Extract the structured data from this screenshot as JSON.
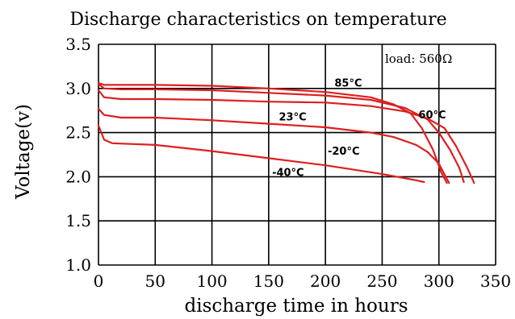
{
  "chart_data": {
    "type": "line",
    "title": "Discharge characteristics on temperature",
    "xlabel": "discharge time in hours",
    "ylabel": "Voltage(v)",
    "xlim": [
      0,
      350
    ],
    "ylim": [
      1.0,
      3.5
    ],
    "x_ticks": [
      "0",
      "50",
      "100",
      "150",
      "200",
      "250",
      "300",
      "350"
    ],
    "y_ticks": [
      "1.0",
      "1.5",
      "2.0",
      "2.5",
      "3.0",
      "3.5"
    ],
    "grid": true,
    "annotation": "load: 560Ω",
    "line_color": "#dd1f1f",
    "series": [
      {
        "name": "85°C",
        "points": [
          [
            0,
            3.06
          ],
          [
            5,
            3.04
          ],
          [
            20,
            3.04
          ],
          [
            50,
            3.04
          ],
          [
            100,
            3.03
          ],
          [
            150,
            3.0
          ],
          [
            200,
            2.96
          ],
          [
            240,
            2.9
          ],
          [
            260,
            2.82
          ],
          [
            275,
            2.72
          ],
          [
            285,
            2.55
          ],
          [
            295,
            2.3
          ],
          [
            302,
            2.05
          ],
          [
            307,
            1.93
          ]
        ]
      },
      {
        "name": "60°C",
        "points": [
          [
            0,
            3.05
          ],
          [
            5,
            3.0
          ],
          [
            20,
            2.99
          ],
          [
            50,
            2.99
          ],
          [
            100,
            2.98
          ],
          [
            150,
            2.95
          ],
          [
            200,
            2.92
          ],
          [
            240,
            2.87
          ],
          [
            270,
            2.78
          ],
          [
            290,
            2.65
          ],
          [
            300,
            2.5
          ],
          [
            310,
            2.3
          ],
          [
            318,
            2.1
          ],
          [
            322,
            1.94
          ]
        ]
      },
      {
        "name": "23°C",
        "points": [
          [
            0,
            2.98
          ],
          [
            5,
            2.9
          ],
          [
            20,
            2.88
          ],
          [
            50,
            2.88
          ],
          [
            100,
            2.87
          ],
          [
            150,
            2.85
          ],
          [
            200,
            2.84
          ],
          [
            240,
            2.8
          ],
          [
            270,
            2.74
          ],
          [
            290,
            2.66
          ],
          [
            305,
            2.55
          ],
          [
            315,
            2.35
          ],
          [
            325,
            2.1
          ],
          [
            331,
            1.93
          ]
        ]
      },
      {
        "name": "-20°C",
        "points": [
          [
            0,
            2.77
          ],
          [
            5,
            2.7
          ],
          [
            20,
            2.67
          ],
          [
            50,
            2.67
          ],
          [
            100,
            2.64
          ],
          [
            150,
            2.6
          ],
          [
            200,
            2.56
          ],
          [
            240,
            2.5
          ],
          [
            260,
            2.45
          ],
          [
            280,
            2.36
          ],
          [
            290,
            2.28
          ],
          [
            300,
            2.15
          ],
          [
            306,
            2.0
          ],
          [
            309,
            1.93
          ]
        ]
      },
      {
        "name": "-40°C",
        "points": [
          [
            0,
            2.58
          ],
          [
            5,
            2.42
          ],
          [
            12,
            2.38
          ],
          [
            50,
            2.36
          ],
          [
            100,
            2.29
          ],
          [
            150,
            2.21
          ],
          [
            200,
            2.13
          ],
          [
            250,
            2.03
          ],
          [
            280,
            1.96
          ],
          [
            287,
            1.94
          ]
        ]
      }
    ],
    "series_label_positions": [
      {
        "name": "85°C",
        "x": 208,
        "y": 3.02
      },
      {
        "name": "60°C",
        "x": 282,
        "y": 2.66
      },
      {
        "name": "23°C",
        "x": 159,
        "y": 2.64
      },
      {
        "name": "-20°C",
        "x": 202,
        "y": 2.25
      },
      {
        "name": "-40°C",
        "x": 153,
        "y": 2.01
      }
    ]
  }
}
